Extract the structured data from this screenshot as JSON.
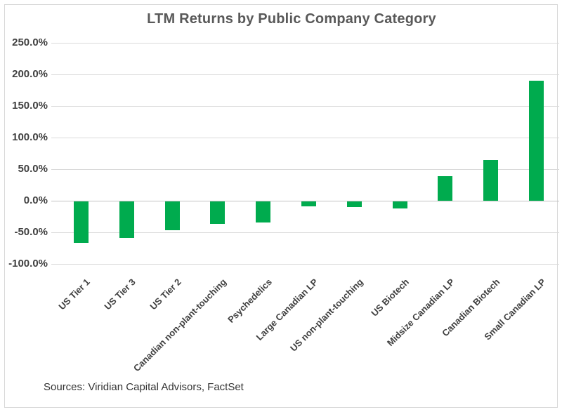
{
  "chart_data": {
    "type": "bar",
    "title": "LTM Returns by Public Company Category",
    "categories": [
      "US Tier 1",
      "US Tier 3",
      "US Tier 2",
      "Canadian non-plant-touching",
      "Psychedelics",
      "Large Canadian LP",
      "US non-plant-touching",
      "US Biotech",
      "Midsize Canadian LP",
      "Canadian Biotech",
      "Small Canadian LP"
    ],
    "values": [
      -65,
      -58,
      -45,
      -35,
      -33,
      -8,
      -9,
      -11,
      39,
      65,
      190
    ],
    "unit": "%",
    "xlabel": "",
    "ylabel": "",
    "ylim": [
      -100,
      250
    ],
    "yticks": [
      {
        "value": 250,
        "label": "250.0%"
      },
      {
        "value": 200,
        "label": "200.0%"
      },
      {
        "value": 150,
        "label": "150.0%"
      },
      {
        "value": 100,
        "label": "100.0%"
      },
      {
        "value": 50,
        "label": "50.0%"
      },
      {
        "value": 0,
        "label": "0.0%"
      },
      {
        "value": -50,
        "label": "-50.0%"
      },
      {
        "value": -100,
        "label": "-100.0%"
      }
    ],
    "grid": true,
    "legend_position": "none",
    "bar_color": "#00ab4e",
    "gridline_color": "#dadada",
    "source_note": "Sources: Viridian Capital Advisors, FactSet"
  }
}
